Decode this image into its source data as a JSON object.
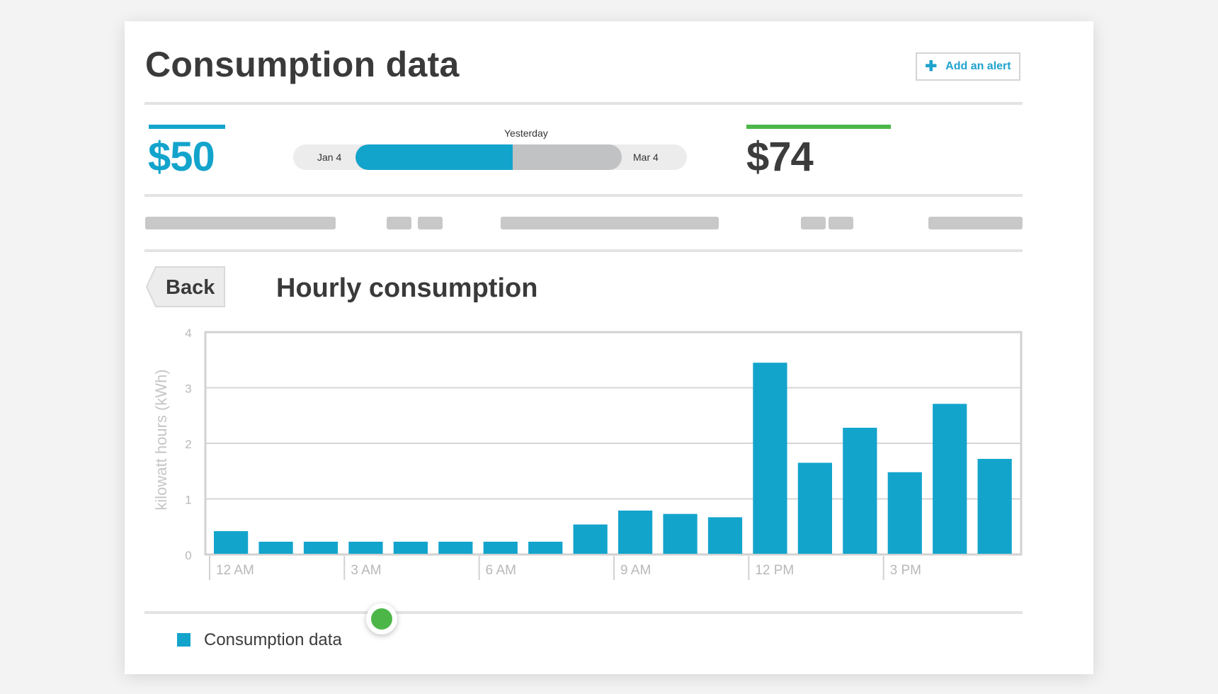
{
  "page": {
    "title": "Consumption data",
    "alert_button": "Add an alert",
    "alert_icon": "plus-icon"
  },
  "summary": {
    "left_value": "$50",
    "left_color": "#13a4cc",
    "right_value": "$74",
    "right_color": "#3c3c3c",
    "right_accent": "#4cb748",
    "range": {
      "start_label": "Jan 4",
      "end_label": "Mar 4",
      "caption": "Yesterday",
      "progress": 0.59
    }
  },
  "chart_section": {
    "back_label": "Back",
    "title": "Hourly consumption"
  },
  "legend": {
    "label": "Consumption data",
    "color": "#13a4cc"
  },
  "slider": {
    "position": 0.25
  },
  "chart_data": {
    "type": "bar",
    "title": "Hourly consumption",
    "xlabel": "",
    "ylabel": "kilowatt hours (kWh)",
    "ylim": [
      0,
      4
    ],
    "yticks": [
      "0",
      "1",
      "2",
      "3",
      "4"
    ],
    "xtick_labels": [
      "12 AM",
      "3 AM",
      "6 AM",
      "9 AM",
      "12 PM",
      "3 PM"
    ],
    "categories": [
      "12 AM",
      "1 AM",
      "2 AM",
      "3 AM",
      "4 AM",
      "5 AM",
      "6 AM",
      "7 AM",
      "8 AM",
      "9 AM",
      "10 AM",
      "11 AM",
      "12 PM",
      "1 PM",
      "2 PM",
      "3 PM",
      "4 PM",
      "5 PM"
    ],
    "values": [
      0.42,
      0.23,
      0.23,
      0.23,
      0.23,
      0.23,
      0.23,
      0.23,
      0.54,
      0.79,
      0.73,
      0.67,
      3.45,
      1.65,
      2.28,
      1.48,
      2.71,
      1.72
    ],
    "color": "#13a4cc",
    "grid": true,
    "legend_position": "bottom-left"
  }
}
